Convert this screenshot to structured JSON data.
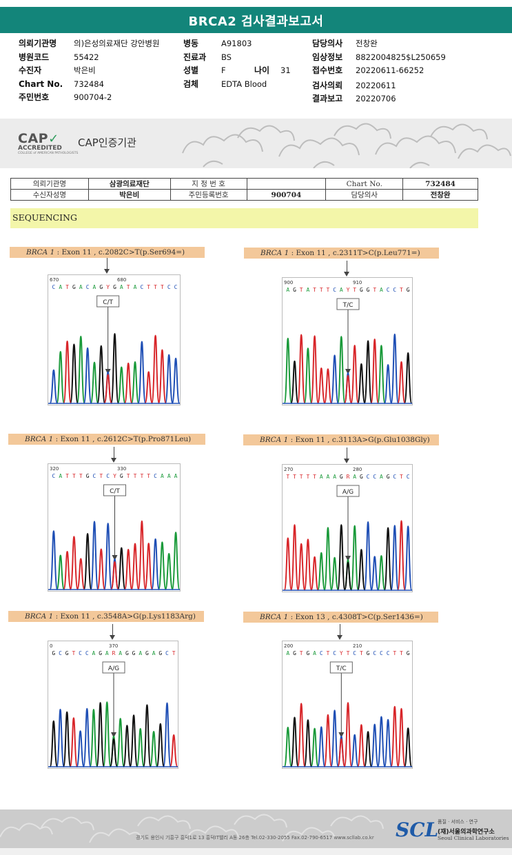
{
  "header": {
    "title": "BRCA2 검사결과보고서"
  },
  "info": {
    "col1": [
      {
        "label": "의뢰기관명",
        "value": "의)은성의료재단 강안병원"
      },
      {
        "label": "병원코드",
        "value": "55422"
      },
      {
        "label": "수진자",
        "value": "박은비"
      },
      {
        "label": "Chart No.",
        "value": "732484"
      },
      {
        "label": "주민번호",
        "value": "900704-2"
      }
    ],
    "col2": [
      {
        "label": "병동",
        "value": "A91803"
      },
      {
        "label": "진료과",
        "value": "BS"
      },
      {
        "label": "성별",
        "value": "F"
      },
      {
        "label": "검체",
        "value": "EDTA Blood"
      }
    ],
    "age": {
      "label": "나이",
      "value": "31"
    },
    "col3": [
      {
        "label": "담당의사",
        "value": "전창완"
      },
      {
        "label": "임상정보",
        "value": "8822004825$L250659"
      },
      {
        "label": "접수번호",
        "value": "20220611-66252"
      },
      {
        "label": "검사의뢰",
        "value": "20220611"
      },
      {
        "label": "결과보고",
        "value": "20220706"
      }
    ]
  },
  "cap": {
    "logo_big": "CAP",
    "logo_sub": "ACCREDITED",
    "logo_tiny": "COLLEGE of AMERICAN PATHOLOGISTS",
    "title": "CAP인증기관"
  },
  "meta_table": {
    "r1": {
      "l1": "의뢰기관명",
      "v1": "삼광의료재단",
      "l2": "지 정 번 호",
      "v2": "",
      "l3": "Chart No.",
      "v3": "732484"
    },
    "r2": {
      "l1": "수신자성명",
      "v1": "박은비",
      "l2": "주민등록번호",
      "v2": "900704",
      "l3": "담당의사",
      "v3": "전창완"
    }
  },
  "section_title": "SEQUENCING",
  "panels": [
    {
      "gene": "BRCA 1",
      "desc": " : Exon 11 , c.2082C>T(p.Ser694=)",
      "pos1": "670",
      "pos2": "680",
      "seq": "CATGACAGYGATACTTTCC",
      "call": "C/T"
    },
    {
      "gene": "BRCA 1",
      "desc": " : Exon 11 , c.2311T>C(p.Leu771=)",
      "pos1": "900",
      "pos2": "910",
      "seq": "AGTATTTCAYTGGTACCTG",
      "call": "T/C"
    },
    {
      "gene": "BRCA 1",
      "desc": " : Exon 11 , c.2612C>T(p.Pro871Leu)",
      "pos1": "320",
      "pos2": "330",
      "seq": "CATTTGCTCYGTTTTCAAA",
      "call": "C/T"
    },
    {
      "gene": "BRCA 1",
      "desc": " : Exon 11 , c.3113A>G(p.Glu1038Gly)",
      "pos1": "270",
      "pos2": "280",
      "seq": "TTTTTAAAGRAGCCAGCTC",
      "call": "A/G"
    },
    {
      "gene": "BRCA 1",
      "desc": " : Exon 11 , c.3548A>G(p.Lys1183Arg)",
      "pos1": "0",
      "pos2": "370",
      "seq": "GCGTCCAGARAGGAGAGCT",
      "call": "A/G"
    },
    {
      "gene": "BRCA 1",
      "desc": " : Exon 13 , c.4308T>C(p.Ser1436=)",
      "pos1": "200",
      "pos2": "210",
      "seq": "AGTGACTCYTCTGCCCTTG",
      "call": "T/C"
    }
  ],
  "footer": {
    "address": "경기도 용인시 기흥구 흥덕1로 13 흥덕IT밸리 A동 26층  Tel.02-330-2055  Fax.02-790-6517  www.scllab.co.kr",
    "logo": "SCL",
    "tagline": "품질 · 서비스 · 연구",
    "org_ko": "(재)서울의과학연구소",
    "org_en": "Seoul Clinical Laboratories"
  },
  "colors": {
    "A": "#1a9a3a",
    "C": "#1f4fb5",
    "G": "#111111",
    "T": "#d8262a",
    "accent": "#13857a"
  }
}
